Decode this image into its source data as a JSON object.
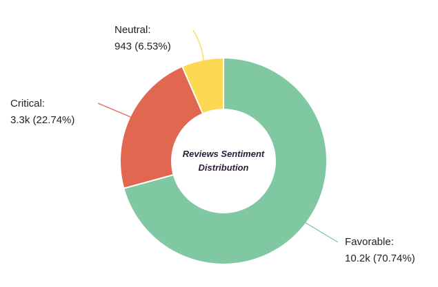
{
  "chart_data": {
    "type": "donut",
    "title": "Reviews Sentiment Distribution",
    "categories": [
      "Favorable:",
      "Critical:",
      "Neutral:"
    ],
    "values": [
      70.74,
      22.74,
      6.53
    ],
    "value_labels": [
      "10.2k (70.74%)",
      "3.3k (22.74%)",
      "943 (6.53%)"
    ],
    "colors": [
      "#7fc8a1",
      "#e26751",
      "#fdd853"
    ]
  }
}
